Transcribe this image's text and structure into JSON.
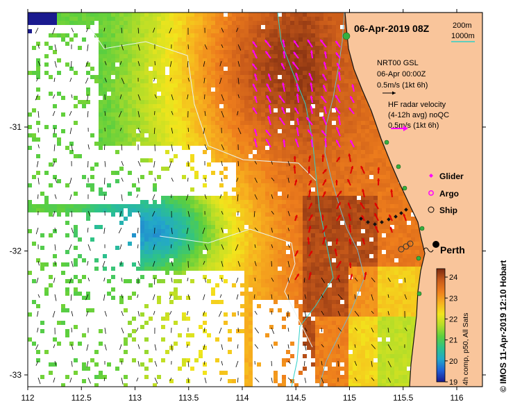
{
  "title": "06-Apr-2019 08Z",
  "depth_legend": {
    "items": [
      {
        "label": "200m",
        "color": "#7ab6c6"
      },
      {
        "label": "1000m",
        "color": "#2fd0c8"
      }
    ]
  },
  "gsl_legend": {
    "line1": "NRT00 GSL",
    "line2": "06-Apr 00:00Z",
    "line3": "0.5m/s (1kt 6h)"
  },
  "radar_legend": {
    "line1": "HF radar velocity",
    "line2": "(4-12h avg) noQC",
    "line3": "0.5m/s (1kt 6h)",
    "arrow_color": "#ff00ff"
  },
  "platform_legend": {
    "items": [
      {
        "symbol": "diamond",
        "label": "Glider",
        "color": "#ff00ff"
      },
      {
        "symbol": "star",
        "label": "Argo",
        "color": "#ff00ff"
      },
      {
        "symbol": "circle",
        "label": "Ship",
        "color": "#000000"
      }
    ]
  },
  "city": {
    "name": "Perth"
  },
  "axes": {
    "x_ticks": [
      "112",
      "112.5",
      "113",
      "113.5",
      "114",
      "114.5",
      "115",
      "115.5",
      "116"
    ],
    "y_ticks": [
      "-31",
      "-32",
      "-33"
    ],
    "lon_range": [
      112,
      116.3
    ],
    "lat_range": [
      -33.1,
      -30.1
    ]
  },
  "colorbar": {
    "ticks": [
      "24",
      "23",
      "22",
      "21",
      "20",
      "19"
    ],
    "range": [
      19,
      24.4
    ],
    "label": "4h comp, p50, All Sats",
    "colors": [
      "#1a1a8f",
      "#1f5fd6",
      "#23a8c9",
      "#2dc28a",
      "#5ccf3e",
      "#b4dd28",
      "#f2e51c",
      "#f7b01e",
      "#ee7d1c",
      "#c85a1a",
      "#7a2a10"
    ]
  },
  "credit": "© IMOS 11-Apr-2019 12:10 Hobart",
  "colors": {
    "land": "#f9c59b",
    "coast": "#111111",
    "gsl_arrow": "#000000",
    "radar_north": "#ff00ff",
    "radar_south": "#e00000"
  }
}
